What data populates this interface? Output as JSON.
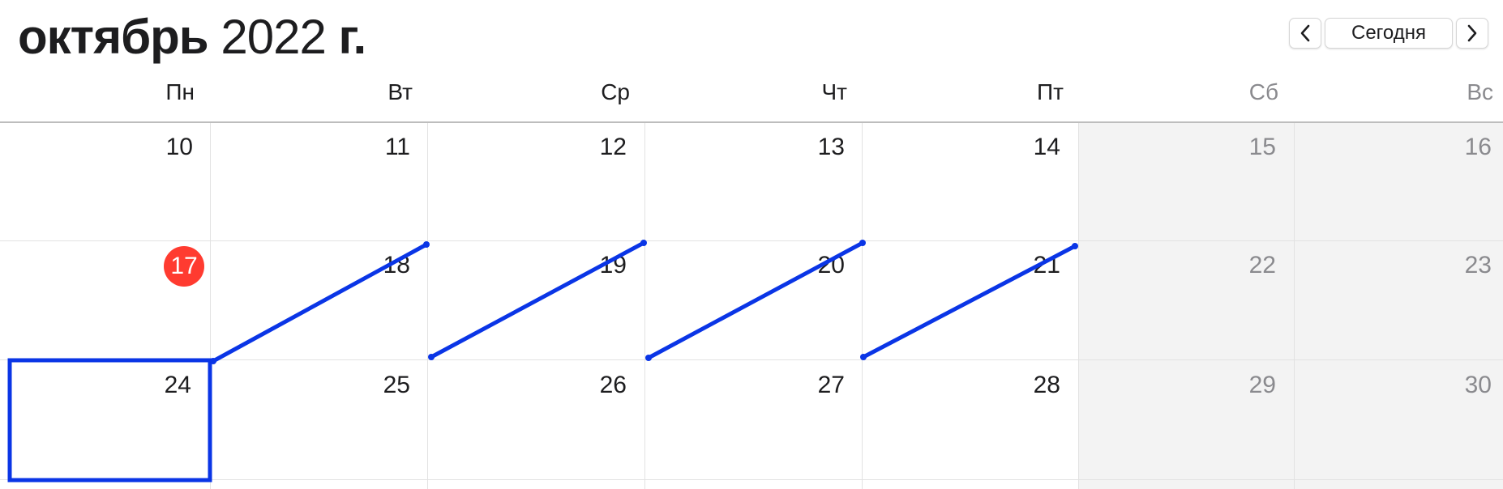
{
  "header": {
    "month": "октябрь",
    "year": "2022",
    "suffix": "г."
  },
  "nav": {
    "prev_icon": "chevron-left-icon",
    "today_label": "Сегодня",
    "next_icon": "chevron-right-icon"
  },
  "weekdays": [
    "Пн",
    "Вт",
    "Ср",
    "Чт",
    "Пт",
    "Сб",
    "Вс"
  ],
  "weeks": [
    [
      "10",
      "11",
      "12",
      "13",
      "14",
      "15",
      "16"
    ],
    [
      "17",
      "18",
      "19",
      "20",
      "21",
      "22",
      "23"
    ],
    [
      "24",
      "25",
      "26",
      "27",
      "28",
      "29",
      "30"
    ]
  ],
  "today": "17",
  "colors": {
    "today_badge": "#ff3b30",
    "annotation": "#0a35e6",
    "weekend_bg": "#f3f3f3",
    "weekend_text": "#8a8a8e"
  }
}
